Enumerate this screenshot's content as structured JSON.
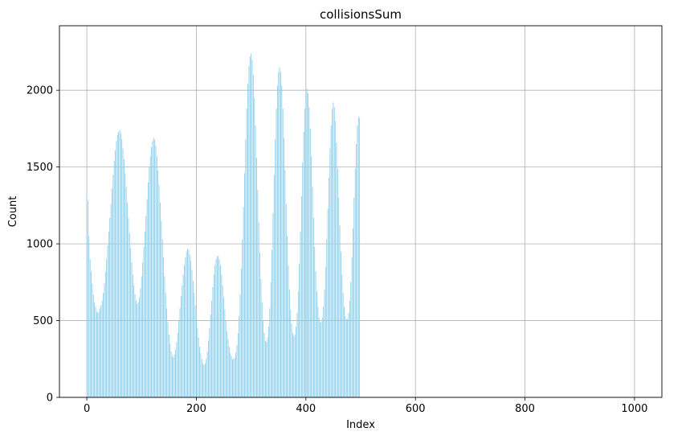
{
  "chart_data": {
    "type": "bar",
    "title": "collisionsSum",
    "xlabel": "Index",
    "ylabel": "Count",
    "xlim": [
      -50,
      1050
    ],
    "ylim": [
      0,
      2420
    ],
    "xticks": [
      0,
      200,
      400,
      600,
      800,
      1000
    ],
    "yticks": [
      0,
      500,
      1000,
      1500,
      2000
    ],
    "grid": true,
    "bar_color": "#87ceeb",
    "x_start": 0,
    "x_step": 2,
    "values": [
      1320,
      1280,
      1050,
      900,
      820,
      740,
      670,
      620,
      590,
      560,
      550,
      560,
      580,
      600,
      630,
      680,
      740,
      820,
      900,
      990,
      1080,
      1170,
      1260,
      1360,
      1450,
      1540,
      1610,
      1670,
      1710,
      1730,
      1740,
      1720,
      1680,
      1620,
      1550,
      1460,
      1370,
      1270,
      1170,
      1070,
      970,
      880,
      800,
      730,
      670,
      630,
      610,
      620,
      650,
      710,
      790,
      880,
      980,
      1080,
      1180,
      1290,
      1400,
      1500,
      1570,
      1630,
      1670,
      1690,
      1680,
      1640,
      1570,
      1480,
      1380,
      1270,
      1150,
      1030,
      910,
      790,
      680,
      580,
      490,
      410,
      350,
      300,
      270,
      260,
      280,
      310,
      360,
      420,
      500,
      580,
      660,
      730,
      800,
      860,
      910,
      950,
      970,
      960,
      930,
      890,
      830,
      760,
      680,
      600,
      520,
      450,
      390,
      330,
      290,
      250,
      220,
      210,
      220,
      250,
      300,
      370,
      450,
      540,
      630,
      720,
      800,
      860,
      900,
      920,
      920,
      900,
      860,
      800,
      730,
      650,
      570,
      500,
      430,
      380,
      330,
      290,
      270,
      250,
      250,
      260,
      290,
      340,
      420,
      530,
      670,
      840,
      1030,
      1240,
      1460,
      1680,
      1880,
      2040,
      2160,
      2220,
      2240,
      2200,
      2100,
      1950,
      1770,
      1560,
      1350,
      1140,
      940,
      770,
      620,
      500,
      420,
      370,
      360,
      390,
      460,
      580,
      750,
      960,
      1200,
      1450,
      1680,
      1880,
      2030,
      2120,
      2150,
      2120,
      2030,
      1880,
      1690,
      1480,
      1260,
      1050,
      860,
      700,
      570,
      480,
      420,
      400,
      410,
      460,
      550,
      690,
      870,
      1080,
      1310,
      1530,
      1730,
      1880,
      1980,
      2010,
      1980,
      1890,
      1750,
      1570,
      1370,
      1170,
      980,
      820,
      690,
      590,
      520,
      490,
      490,
      520,
      590,
      700,
      850,
      1030,
      1230,
      1430,
      1620,
      1770,
      1880,
      1920,
      1890,
      1800,
      1660,
      1490,
      1300,
      1120,
      950,
      800,
      680,
      590,
      530,
      510,
      510,
      550,
      630,
      750,
      910,
      1100,
      1300,
      1490,
      1650,
      1770,
      1830,
      1820
    ]
  }
}
